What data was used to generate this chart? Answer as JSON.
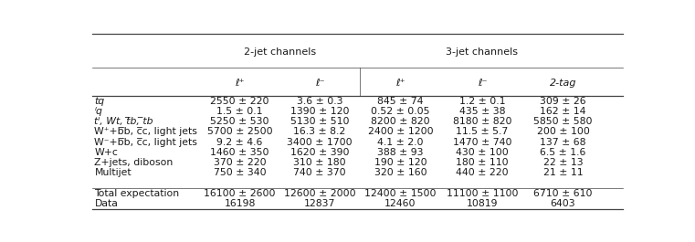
{
  "col_group_labels": [
    "2-jet channels",
    "3-jet channels"
  ],
  "col_headers": [
    "ℓ⁺",
    "ℓ⁻",
    "ℓ⁺",
    "ℓ⁻",
    "2-tag"
  ],
  "row_labels": [
    "tq",
    "ᴵq",
    "tᴵ, Wt, t̅b, ̅tb",
    "W⁺+b̅b, c̅c, light jets",
    "W⁻+b̅b, c̅c, light jets",
    "W+c",
    "Z+jets, diboson",
    "Multijet",
    "",
    "Total expectation",
    "Data"
  ],
  "row_labels_italic": [
    true,
    true,
    true,
    false,
    false,
    false,
    false,
    false,
    false,
    false,
    false
  ],
  "data": [
    [
      "2550 ± 220",
      "3.6 ± 0.3",
      "845 ± 74",
      "1.2 ± 0.1",
      "309 ± 26"
    ],
    [
      "1.5 ± 0.1",
      "1390 ± 120",
      "0.52 ± 0.05",
      "435 ± 38",
      "162 ± 14"
    ],
    [
      "5250 ± 530",
      "5130 ± 510",
      "8200 ± 820",
      "8180 ± 820",
      "5850 ± 580"
    ],
    [
      "5700 ± 2500",
      "16.3 ± 8.2",
      "2400 ± 1200",
      "11.5 ± 5.7",
      "200 ± 100"
    ],
    [
      "9.2 ± 4.6",
      "3400 ± 1700",
      "4.1 ± 2.0",
      "1470 ± 740",
      "137 ± 68"
    ],
    [
      "1460 ± 350",
      "1620 ± 390",
      "388 ± 93",
      "430 ± 100",
      "6.5 ± 1.6"
    ],
    [
      "370 ± 220",
      "310 ± 180",
      "190 ± 120",
      "180 ± 110",
      "22 ± 13"
    ],
    [
      "750 ± 340",
      "740 ± 370",
      "320 ± 160",
      "440 ± 220",
      "21 ± 11"
    ],
    [
      "",
      "",
      "",
      "",
      ""
    ],
    [
      "16100 ± 2600",
      "12600 ± 2000",
      "12400 ± 1500",
      "11100 ± 1100",
      "6710 ± 610"
    ],
    [
      "16198",
      "12837",
      "12460",
      "10819",
      "6403"
    ]
  ],
  "text_color": "#1a1a1a",
  "line_color": "#444444",
  "label_fontsize": 7.8,
  "data_fontsize": 7.8,
  "header_fontsize": 8.0
}
